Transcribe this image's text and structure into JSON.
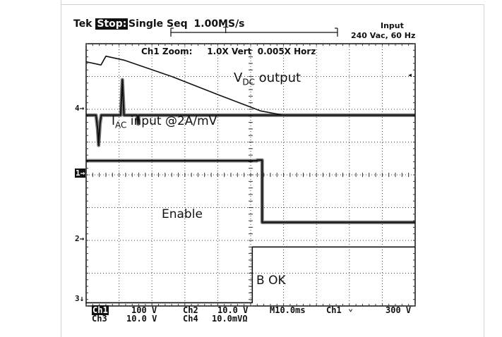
{
  "header": {
    "brand": "Tek",
    "state": "Stop:",
    "mode": "Single Seq",
    "sample_rate": "1.00MS/s",
    "input_title": "Input",
    "input_spec": "240 Vac, 60 Hz",
    "trigger_marker": "T"
  },
  "zoom_label": "Ch1 Zoom:     1.0X Vert  0.005X Horz",
  "annotations": {
    "vdc_main": "V",
    "vdc_sub": "DC",
    "vdc_rest": " output",
    "iac_main": "I",
    "iac_sub": "AC",
    "iac_rest": " input @2A/mV",
    "enable": "Enable",
    "b_ok": "B OK"
  },
  "markers": {
    "ch4": "4→",
    "ch1": "1→",
    "ch2": "2→",
    "ch3": "3↓"
  },
  "status": {
    "row1": {
      "ch1_label": "Ch1",
      "ch1_scale": "100 V",
      "ch2_label": "Ch2",
      "ch2_scale": "10.0 V",
      "timebase": "M10.0ms",
      "trig_source": "Ch1",
      "trig_slope": "⌄",
      "trig_level": "300 V"
    },
    "row2": {
      "ch3_label": "Ch3",
      "ch3_scale": "10.0 V",
      "ch4_label": "Ch4",
      "ch4_scale": "10.0mVΩ"
    }
  },
  "chart_data": {
    "type": "line",
    "grid": true,
    "x_divisions": 10,
    "y_divisions": 8,
    "x_range_div": [
      0,
      10
    ],
    "y_range_div": [
      0,
      8
    ],
    "series": [
      {
        "name": "VDC output",
        "color": "#111111",
        "points": [
          [
            0,
            7.45
          ],
          [
            0.45,
            7.35
          ],
          [
            0.6,
            7.62
          ],
          [
            1.15,
            7.5
          ],
          [
            2.6,
            7.0
          ],
          [
            4.0,
            6.45
          ],
          [
            5.3,
            5.95
          ],
          [
            6.0,
            5.82
          ],
          [
            10,
            5.82
          ]
        ]
      },
      {
        "name": "IAC input",
        "color": "#111111",
        "thickness": 2,
        "points": [
          [
            0,
            5.82
          ],
          [
            0.3,
            5.82
          ],
          [
            0.35,
            5.4
          ],
          [
            0.38,
            4.9
          ],
          [
            0.42,
            5.55
          ],
          [
            0.46,
            5.82
          ],
          [
            1.05,
            5.82
          ],
          [
            1.1,
            6.9
          ],
          [
            1.15,
            5.82
          ],
          [
            1.55,
            5.82
          ],
          [
            1.58,
            5.55
          ],
          [
            1.6,
            5.82
          ],
          [
            10,
            5.82
          ]
        ]
      },
      {
        "name": "Enable",
        "color": "#111111",
        "thickness": 2,
        "points": [
          [
            0,
            4.43
          ],
          [
            5.2,
            4.43
          ],
          [
            5.2,
            4.45
          ],
          [
            5.35,
            4.45
          ],
          [
            5.35,
            2.55
          ],
          [
            10,
            2.55
          ]
        ]
      },
      {
        "name": "B OK",
        "color": "#111111",
        "points": [
          [
            0,
            0.1
          ],
          [
            5.05,
            0.1
          ],
          [
            5.05,
            1.8
          ],
          [
            10,
            1.8
          ]
        ]
      }
    ]
  }
}
